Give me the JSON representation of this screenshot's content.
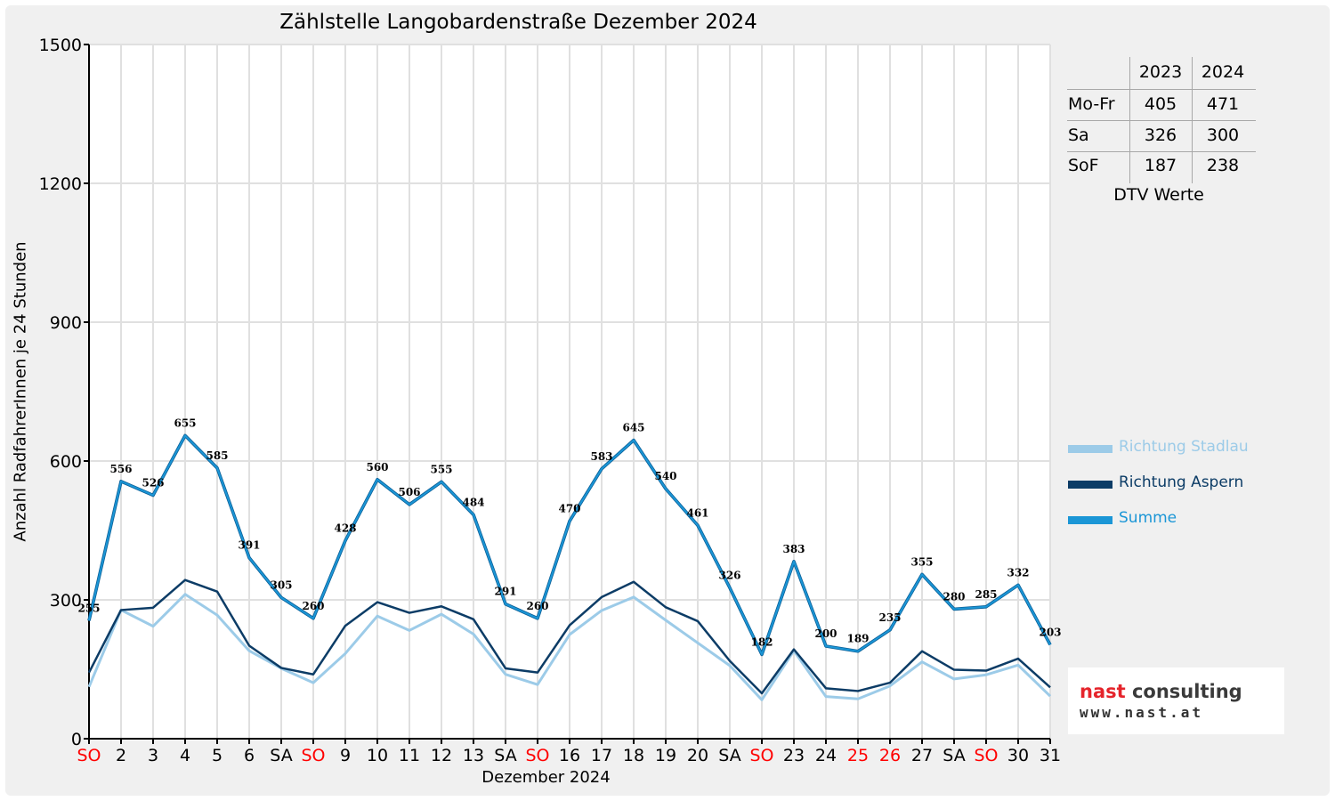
{
  "chart_data": {
    "type": "line",
    "title": "Zählstelle Langobardenstraße Dezember 2024",
    "xlabel": "Dezember 2024",
    "ylabel": "Anzahl RadfahrerInnen je 24 Stunden",
    "ylim": [
      0,
      1500
    ],
    "yticks": [
      0,
      300,
      600,
      900,
      1200,
      1500
    ],
    "grid": true,
    "legend_position": "right",
    "categories": [
      "SO",
      "2",
      "3",
      "4",
      "5",
      "6",
      "SA",
      "SO",
      "9",
      "10",
      "11",
      "12",
      "13",
      "SA",
      "SO",
      "16",
      "17",
      "18",
      "19",
      "20",
      "SA",
      "SO",
      "23",
      "24",
      "25",
      "26",
      "27",
      "SA",
      "SO",
      "30",
      "31"
    ],
    "category_highlight": [
      true,
      false,
      false,
      false,
      false,
      false,
      false,
      true,
      false,
      false,
      false,
      false,
      false,
      false,
      true,
      false,
      false,
      false,
      false,
      false,
      false,
      true,
      false,
      false,
      true,
      true,
      false,
      false,
      true,
      false,
      false
    ],
    "series": [
      {
        "name": "Richtung Stadlau",
        "color": "#9ccbe8",
        "values": [
          112,
          278,
          243,
          312,
          267,
          190,
          152,
          121,
          184,
          265,
          234,
          269,
          226,
          139,
          117,
          225,
          277,
          306,
          256,
          207,
          158,
          84,
          190,
          91,
          86,
          114,
          166,
          129,
          138,
          159,
          92
        ]
      },
      {
        "name": "Richtung Aspern",
        "color": "#0c3c66",
        "values": [
          143,
          278,
          283,
          343,
          318,
          201,
          153,
          139,
          244,
          295,
          272,
          286,
          258,
          152,
          143,
          245,
          306,
          339,
          284,
          254,
          168,
          98,
          193,
          109,
          103,
          121,
          189,
          149,
          147,
          173,
          111
        ]
      },
      {
        "name": "Summe",
        "color": "#1b96d6",
        "values": [
          255,
          556,
          526,
          655,
          585,
          391,
          305,
          260,
          428,
          560,
          506,
          555,
          484,
          291,
          260,
          470,
          583,
          645,
          540,
          461,
          326,
          182,
          383,
          200,
          189,
          235,
          355,
          280,
          285,
          332,
          203
        ],
        "labels": [
          "255",
          "556",
          "526",
          "655",
          "585",
          "391",
          "305",
          "260",
          "428",
          "560",
          "506",
          "555",
          "484",
          "291",
          "260",
          "470",
          "583",
          "645",
          "540",
          "461",
          "326",
          "182",
          "383",
          "200",
          "189",
          "235",
          "355",
          "280",
          "285",
          "332",
          "203"
        ]
      }
    ]
  },
  "dtv_table": {
    "headers": [
      "2023",
      "2024"
    ],
    "rows": [
      {
        "label": "Mo-Fr",
        "v2023": "405",
        "v2024": "471"
      },
      {
        "label": "Sa",
        "v2023": "326",
        "v2024": "300"
      },
      {
        "label": "SoF",
        "v2023": "187",
        "v2024": "238"
      }
    ],
    "caption": "DTV Werte"
  },
  "logo": {
    "name": "nast consulting",
    "url": "www.nast.at",
    "color_nast": "#e5242b",
    "color_consulting": "#3a3a3a"
  },
  "colors": {
    "holiday_tick": "#ff0000",
    "grid": "#e0e0e0",
    "axis": "#000000"
  }
}
